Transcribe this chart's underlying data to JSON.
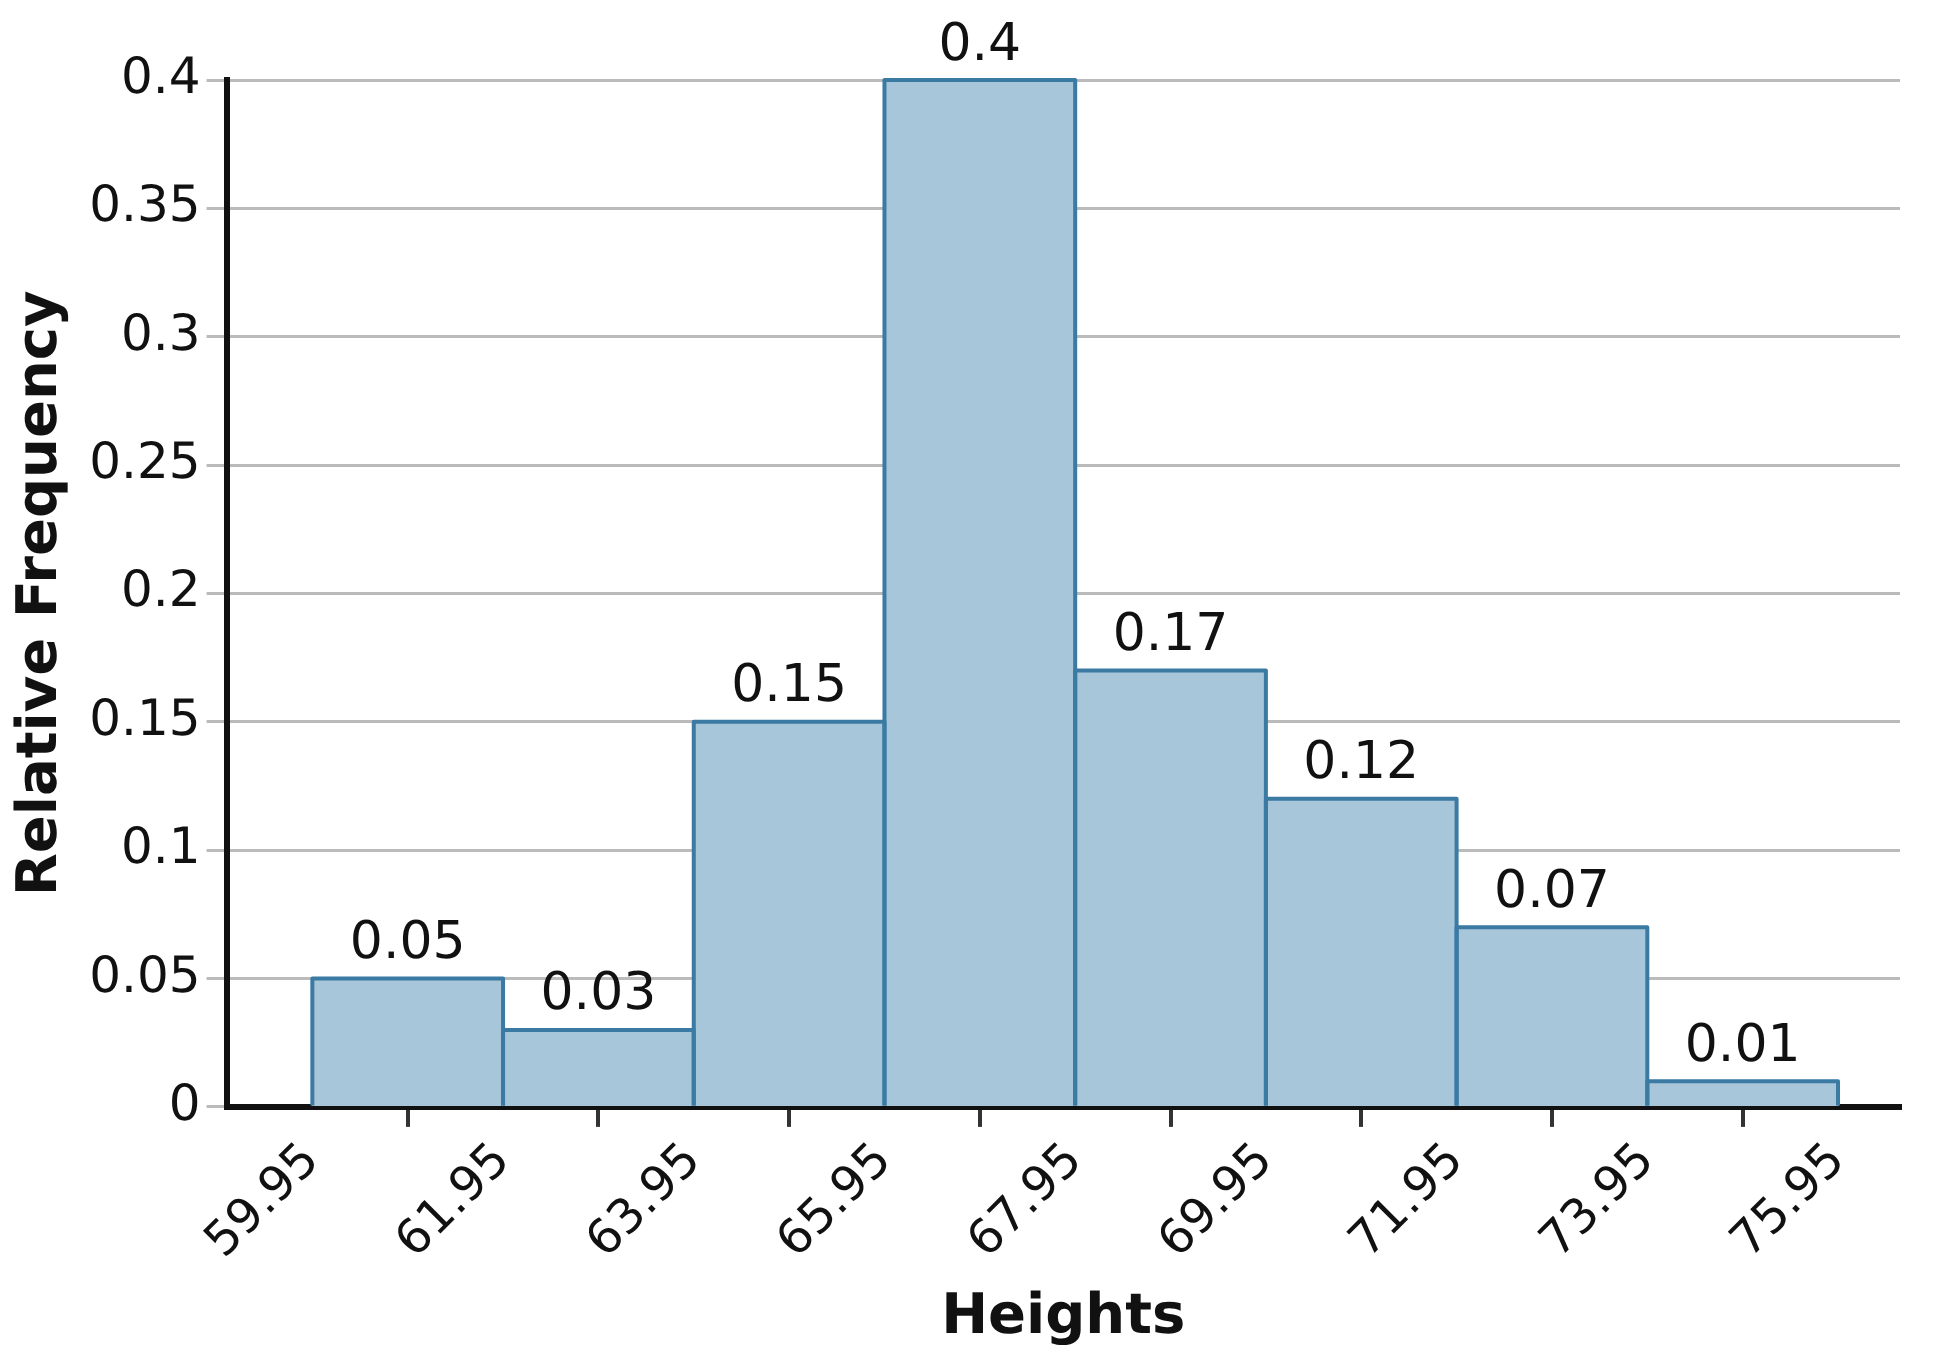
{
  "chart_data": {
    "type": "histogram",
    "xlabel": "Heights",
    "ylabel": "Relative Frequency",
    "bins": [
      59.95,
      61.95,
      63.95,
      65.95,
      67.95,
      69.95,
      71.95,
      73.95,
      75.95
    ],
    "values": [
      0.05,
      0.03,
      0.15,
      0.4,
      0.17,
      0.12,
      0.07,
      0.01
    ],
    "color": "#a8c6da",
    "xlim": [
      59.05,
      76.6
    ],
    "xticks": [
      59.95,
      61.95,
      63.95,
      65.95,
      67.95,
      69.95,
      71.95,
      73.95,
      75.95
    ],
    "ylim": [
      0,
      0.4
    ],
    "yticks": [
      0,
      0.05,
      0.1,
      0.15,
      0.2,
      0.25,
      0.3,
      0.35,
      0.4
    ],
    "grid": "y",
    "data_labels": true,
    "legend": false
  }
}
